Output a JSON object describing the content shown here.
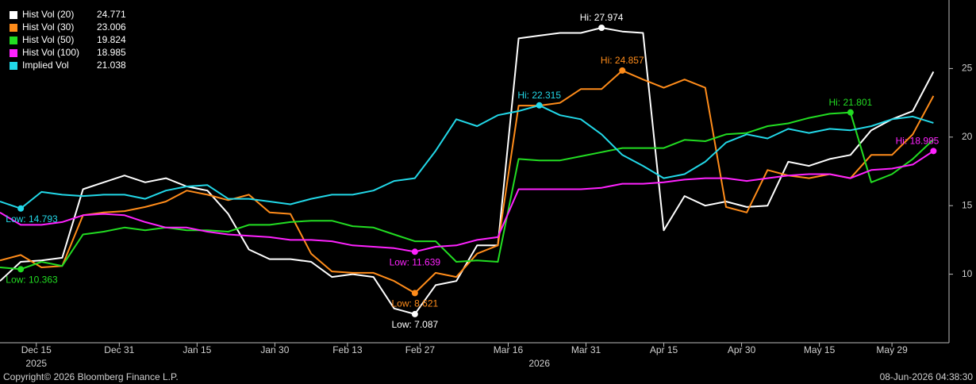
{
  "chart_data": {
    "type": "line",
    "legend": "top-left",
    "x": [
      "2025-12-08",
      "2025-12-12",
      "2025-12-16",
      "2025-12-20",
      "2025-12-24",
      "2025-12-28",
      "2026-01-01",
      "2026-01-05",
      "2026-01-09",
      "2026-01-13",
      "2026-01-17",
      "2026-01-21",
      "2026-01-25",
      "2026-01-29",
      "2026-02-02",
      "2026-02-06",
      "2026-02-10",
      "2026-02-14",
      "2026-02-18",
      "2026-02-22",
      "2026-02-26",
      "2026-03-02",
      "2026-03-06",
      "2026-03-10",
      "2026-03-14",
      "2026-03-18",
      "2026-03-22",
      "2026-03-26",
      "2026-03-30",
      "2026-04-03",
      "2026-04-07",
      "2026-04-11",
      "2026-04-15",
      "2026-04-19",
      "2026-04-23",
      "2026-04-27",
      "2026-05-01",
      "2026-05-05",
      "2026-05-09",
      "2026-05-13",
      "2026-05-17",
      "2026-05-21",
      "2026-05-25",
      "2026-05-29",
      "2026-06-02",
      "2026-06-06"
    ],
    "xlim": [
      "2025-12-08",
      "2026-06-09"
    ],
    "xticks": [
      {
        "value": "2025-12-15",
        "label": "Dec 15"
      },
      {
        "value": "2025-12-31",
        "label": "Dec 31"
      },
      {
        "value": "2026-01-15",
        "label": "Jan 15"
      },
      {
        "value": "2026-01-30",
        "label": "Jan 30"
      },
      {
        "value": "2026-02-13",
        "label": "Feb 13"
      },
      {
        "value": "2026-02-27",
        "label": "Feb 27"
      },
      {
        "value": "2026-03-16",
        "label": "Mar 16"
      },
      {
        "value": "2026-03-31",
        "label": "Mar 31"
      },
      {
        "value": "2026-04-15",
        "label": "Apr 15"
      },
      {
        "value": "2026-04-30",
        "label": "Apr 30"
      },
      {
        "value": "2026-05-15",
        "label": "May 15"
      },
      {
        "value": "2026-05-29",
        "label": "May 29"
      }
    ],
    "year_labels": [
      {
        "value": "2025-12-15",
        "label": "2025"
      },
      {
        "value": "2026-03-22",
        "label": "2026"
      }
    ],
    "ylim": [
      5,
      30
    ],
    "yticks": [
      10,
      15,
      20,
      25
    ],
    "series": [
      {
        "name": "Hist Vol (20)",
        "color": "#ffffff",
        "low_label": "Low: 7.087",
        "high_label": "Hi: 27.974",
        "values": [
          9.5,
          10.9,
          11.0,
          11.2,
          16.2,
          16.7,
          17.2,
          16.7,
          17.0,
          16.4,
          16.1,
          14.4,
          11.8,
          11.1,
          11.1,
          10.9,
          9.8,
          10.0,
          9.8,
          7.5,
          7.087,
          9.2,
          9.5,
          12.1,
          12.1,
          27.2,
          27.4,
          27.6,
          27.6,
          27.974,
          27.7,
          27.6,
          13.2,
          15.7,
          15.0,
          15.3,
          14.9,
          15.0,
          18.2,
          17.9,
          18.4,
          18.7,
          20.5,
          21.3,
          21.9,
          24.771
        ]
      },
      {
        "name": "Hist Vol (30)",
        "color": "#ff8c1a",
        "low_label": "Low: 8.621",
        "high_label": "Hi: 24.857",
        "values": [
          11.0,
          11.4,
          10.5,
          10.6,
          14.3,
          14.5,
          14.6,
          14.9,
          15.3,
          16.1,
          15.8,
          15.4,
          15.8,
          14.5,
          14.4,
          11.5,
          10.2,
          10.1,
          10.1,
          9.5,
          8.621,
          10.1,
          9.8,
          11.5,
          12.1,
          22.3,
          22.3,
          22.5,
          23.5,
          23.5,
          24.857,
          24.2,
          23.6,
          24.2,
          23.6,
          14.9,
          14.5,
          17.6,
          17.2,
          17.0,
          17.3,
          17.0,
          18.7,
          18.7,
          20.2,
          23.006
        ]
      },
      {
        "name": "Hist Vol (50)",
        "color": "#22dd22",
        "low_label": "Low: 10.363",
        "high_label": "Hi: 21.801",
        "values": [
          10.5,
          10.363,
          10.9,
          10.6,
          12.9,
          13.1,
          13.4,
          13.2,
          13.4,
          13.2,
          13.2,
          13.1,
          13.6,
          13.6,
          13.8,
          13.9,
          13.9,
          13.5,
          13.4,
          12.9,
          12.4,
          12.4,
          10.9,
          11.0,
          10.9,
          18.4,
          18.3,
          18.3,
          18.6,
          18.9,
          19.2,
          19.2,
          19.2,
          19.8,
          19.7,
          20.2,
          20.3,
          20.8,
          21.0,
          21.4,
          21.7,
          21.801,
          16.7,
          17.3,
          18.4,
          19.824
        ]
      },
      {
        "name": "Hist Vol (100)",
        "color": "#ff22ff",
        "low_label": "Low: 11.639",
        "high_label": "Hi: 18.985",
        "values": [
          14.5,
          13.6,
          13.6,
          13.8,
          14.3,
          14.4,
          14.3,
          13.8,
          13.4,
          13.4,
          13.1,
          12.9,
          12.8,
          12.7,
          12.5,
          12.5,
          12.4,
          12.1,
          12.0,
          11.9,
          11.639,
          12.0,
          12.1,
          12.5,
          12.7,
          16.2,
          16.2,
          16.2,
          16.2,
          16.3,
          16.6,
          16.6,
          16.7,
          16.9,
          17.0,
          17.0,
          16.8,
          17.0,
          17.2,
          17.3,
          17.3,
          17.0,
          17.6,
          17.7,
          18.0,
          18.985
        ]
      },
      {
        "name": "Implied Vol",
        "color": "#22d8e8",
        "low_label": "Low: 14.793",
        "high_label": "Hi: 22.315",
        "values": [
          15.3,
          14.793,
          16.0,
          15.8,
          15.7,
          15.8,
          15.8,
          15.5,
          16.1,
          16.4,
          16.5,
          15.5,
          15.5,
          15.3,
          15.1,
          15.5,
          15.8,
          15.8,
          16.1,
          16.8,
          17.0,
          19.0,
          21.3,
          20.8,
          21.6,
          21.9,
          22.315,
          21.6,
          21.3,
          20.2,
          18.7,
          17.9,
          17.0,
          17.3,
          18.2,
          19.6,
          20.2,
          19.9,
          20.6,
          20.3,
          20.6,
          20.5,
          20.8,
          21.3,
          21.5,
          21.038
        ]
      }
    ],
    "copyright": "Copyright© 2026 Bloomberg Finance L.P.",
    "timestamp": "08-Jun-2026 04:38:30"
  }
}
